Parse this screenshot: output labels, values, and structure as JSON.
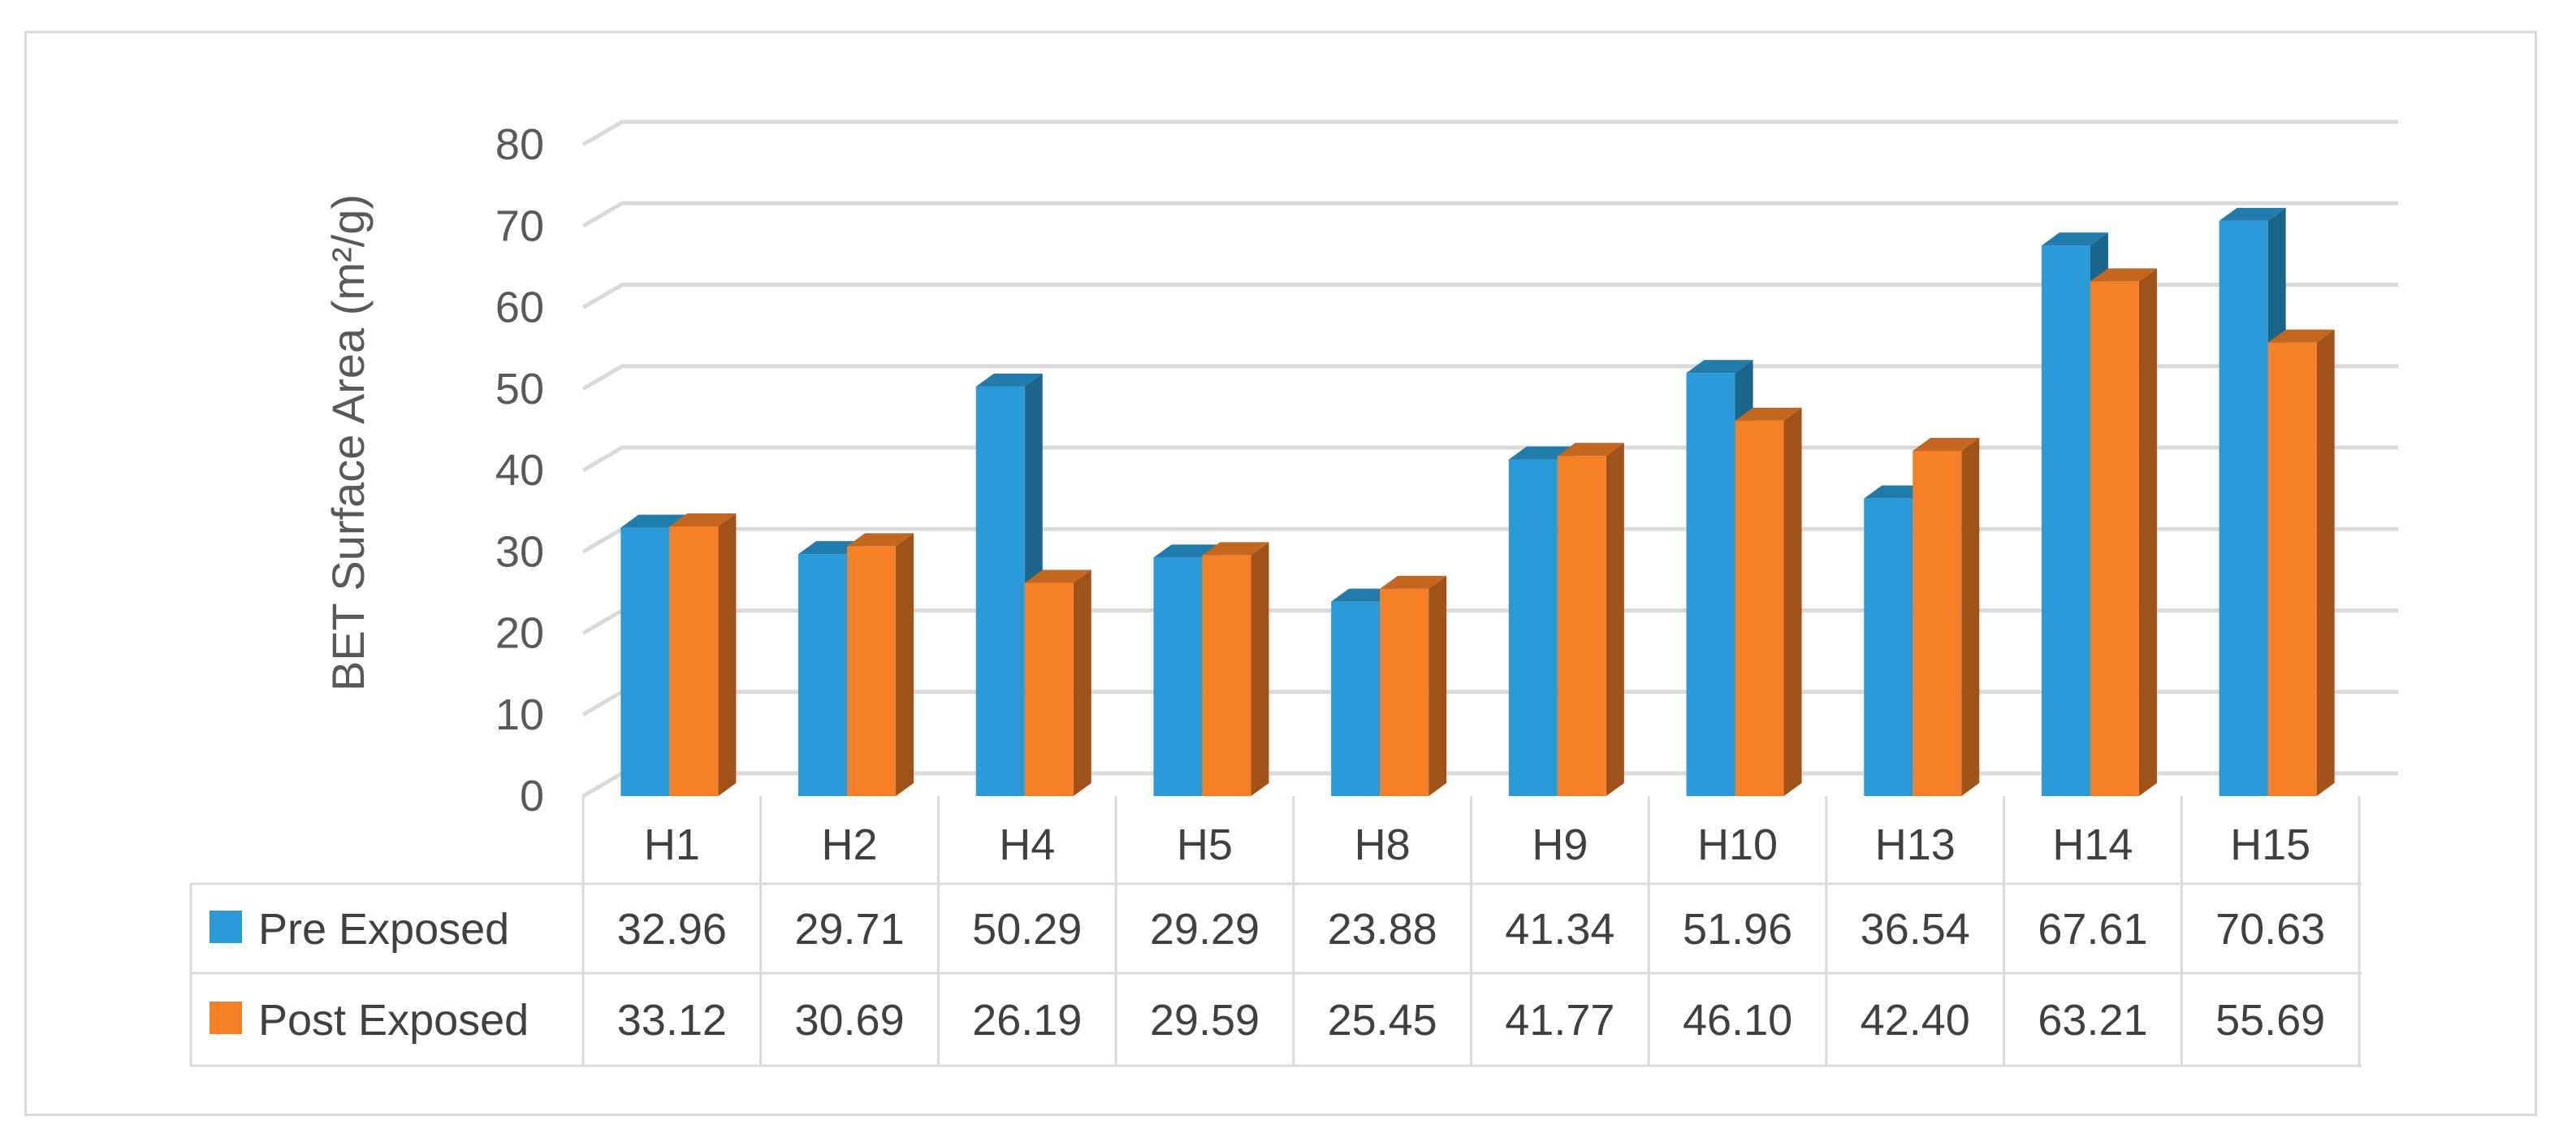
{
  "chart_data": {
    "type": "bar",
    "ylabel": "BET Surface Area (m²/g)",
    "ylim": [
      0,
      80
    ],
    "yticks": [
      0,
      10,
      20,
      30,
      40,
      50,
      60,
      70,
      80
    ],
    "grid": true,
    "legend_placement": "data-table-left",
    "categories": [
      "H1",
      "H2",
      "H4",
      "H5",
      "H8",
      "H9",
      "H10",
      "H13",
      "H14",
      "H15"
    ],
    "series": [
      {
        "name": "Pre Exposed",
        "color": "#2a9ad8",
        "values": [
          32.96,
          29.71,
          50.29,
          29.29,
          23.88,
          41.34,
          51.96,
          36.54,
          67.61,
          70.63
        ],
        "labels": [
          "32.96",
          "29.71",
          "50.29",
          "29.29",
          "23.88",
          "41.34",
          "51.96",
          "36.54",
          "67.61",
          "70.63"
        ]
      },
      {
        "name": "Post Exposed",
        "color": "#f58026",
        "values": [
          33.12,
          30.69,
          26.19,
          29.59,
          25.45,
          41.77,
          46.1,
          42.4,
          63.21,
          55.69
        ],
        "labels": [
          "33.12",
          "30.69",
          "26.19",
          "29.59",
          "25.45",
          "41.77",
          "46.10",
          "42.40",
          "63.21",
          "55.69"
        ]
      }
    ]
  }
}
